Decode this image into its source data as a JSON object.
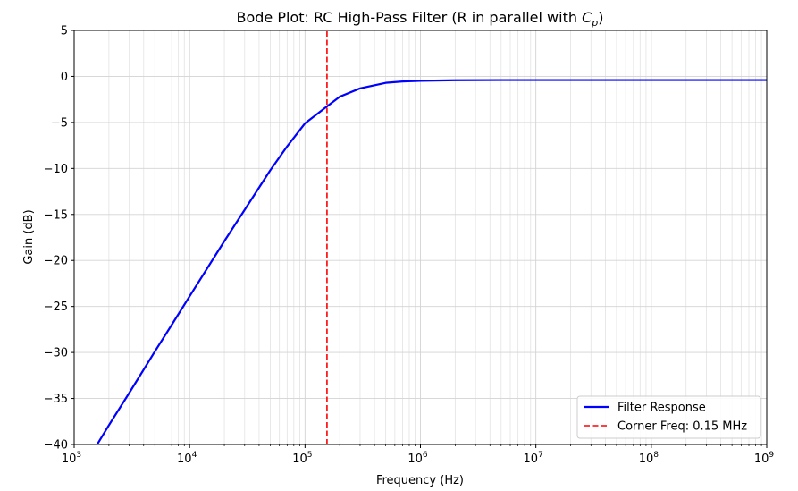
{
  "chart_data": {
    "type": "line",
    "title": "Bode Plot: RC High-Pass Filter (R in parallel with ",
    "title_math": "C",
    "title_math_sub": "p",
    "title_end": ")",
    "xlabel": "Frequency (Hz)",
    "ylabel": "Gain (dB)",
    "x_scale": "log",
    "xlim": [
      1000,
      1000000000
    ],
    "ylim": [
      -40,
      5
    ],
    "x_ticks": [
      {
        "value": 1000,
        "base": "10",
        "exp": "3"
      },
      {
        "value": 10000,
        "base": "10",
        "exp": "4"
      },
      {
        "value": 100000,
        "base": "10",
        "exp": "5"
      },
      {
        "value": 1000000,
        "base": "10",
        "exp": "6"
      },
      {
        "value": 10000000,
        "base": "10",
        "exp": "7"
      },
      {
        "value": 100000000,
        "base": "10",
        "exp": "8"
      },
      {
        "value": 1000000000,
        "base": "10",
        "exp": "9"
      }
    ],
    "y_ticks": [
      {
        "value": 5,
        "label": "5"
      },
      {
        "value": 0,
        "label": "0"
      },
      {
        "value": -5,
        "label": "−5"
      },
      {
        "value": -10,
        "label": "−10"
      },
      {
        "value": -15,
        "label": "−15"
      },
      {
        "value": -20,
        "label": "−20"
      },
      {
        "value": -25,
        "label": "−25"
      },
      {
        "value": -30,
        "label": "−30"
      },
      {
        "value": -35,
        "label": "−35"
      },
      {
        "value": -40,
        "label": "−40"
      }
    ],
    "grid": true,
    "legend_position": "lower-right",
    "series": [
      {
        "name": "Filter Response",
        "color": "#0000ff",
        "style": "solid",
        "x": [
          1000,
          1600,
          2000,
          3000,
          5000,
          7000,
          10000,
          20000,
          30000,
          50000,
          70000,
          100000,
          150000,
          200000,
          300000,
          500000,
          700000,
          1000000,
          2000000,
          5000000,
          10000000,
          100000000,
          1000000000
        ],
        "y": [
          -43.9,
          -39.9,
          -37.9,
          -34.4,
          -29.9,
          -27.0,
          -23.9,
          -17.9,
          -14.5,
          -10.2,
          -7.6,
          -5.1,
          -3.4,
          -2.2,
          -1.3,
          -0.7,
          -0.55,
          -0.48,
          -0.42,
          -0.4,
          -0.4,
          -0.4,
          -0.4
        ]
      },
      {
        "name": "Corner Freq: 0.15 MHz",
        "color": "#ff0000",
        "style": "dashed",
        "x": [
          155000,
          155000
        ],
        "y": [
          -40,
          5
        ]
      }
    ]
  }
}
